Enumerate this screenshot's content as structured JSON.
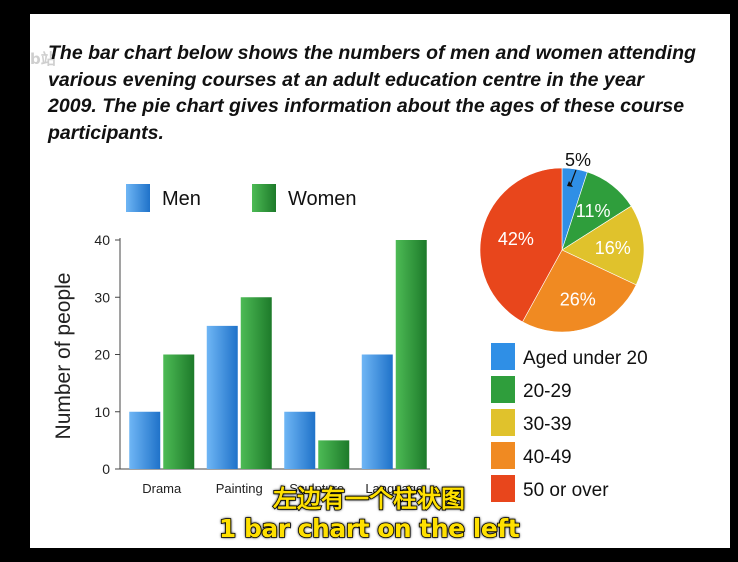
{
  "watermark": "b站",
  "intro": "The bar chart below shows the numbers of men and women attending various evening courses at an adult education centre in the year 2009. The pie chart gives information about the ages of these course participants.",
  "subtitles": {
    "chinese": "左边有一个柱状图",
    "english": "1 bar chart on the left"
  },
  "colors": {
    "men": "#2f8fe6",
    "women": "#2f9e3c",
    "aged_under_20": "#2f8fe6",
    "age_20_29": "#2f9e3c",
    "age_30_39": "#e0c22c",
    "age_40_49": "#f08a22",
    "age_50_over": "#e8461c"
  },
  "chart_data": [
    {
      "type": "bar",
      "categories": [
        "Drama",
        "Painting",
        "Sculpture",
        "Language"
      ],
      "series": [
        {
          "name": "Men",
          "values": [
            10,
            25,
            10,
            20
          ]
        },
        {
          "name": "Women",
          "values": [
            20,
            30,
            5,
            40
          ]
        }
      ],
      "ylabel": "Number of people",
      "xlabel": "",
      "ylim": [
        0,
        40
      ],
      "yticks": [
        0,
        10,
        20,
        30,
        40
      ],
      "legend": "top",
      "grid": false
    },
    {
      "type": "pie",
      "labels": [
        "Aged under 20",
        "20-29",
        "30-39",
        "40-49",
        "50 or over"
      ],
      "values": [
        5,
        11,
        16,
        26,
        42
      ],
      "value_labels": [
        "5%",
        "11%",
        "16%",
        "26%",
        "42%"
      ],
      "legend": "bottom"
    }
  ]
}
